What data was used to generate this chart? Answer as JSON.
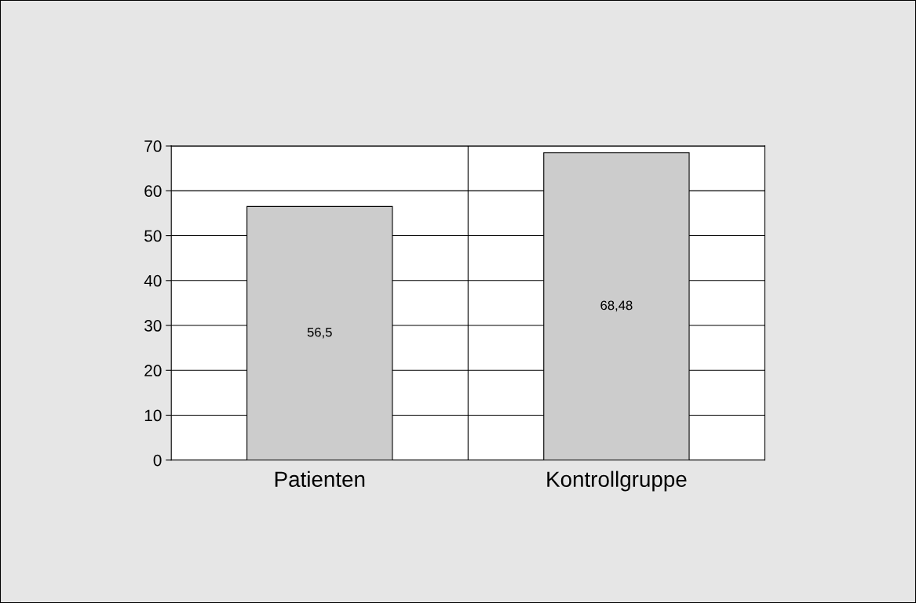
{
  "chart_data": {
    "type": "bar",
    "categories": [
      "Patienten",
      "Kontrollgruppe"
    ],
    "values": [
      56.5,
      68.48
    ],
    "value_labels": [
      "56,5",
      "68,48"
    ],
    "color": "#cccccc",
    "ylim": [
      0,
      70
    ],
    "yticks": [
      0,
      10,
      20,
      30,
      40,
      50,
      60,
      70
    ],
    "grid": true,
    "legend": false
  }
}
